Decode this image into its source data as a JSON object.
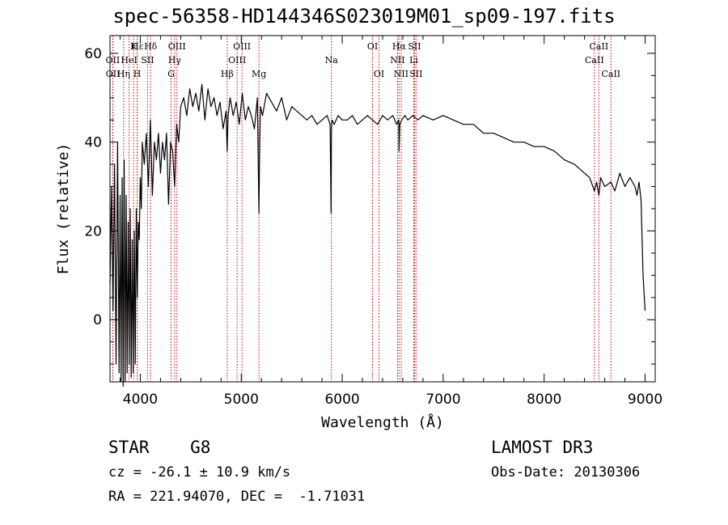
{
  "chart_data": {
    "type": "line",
    "title": "spec-56358-HD144346S023019M01_sp09-197.fits",
    "xlabel": "Wavelength (Å)",
    "ylabel": "Flux (relative)",
    "xlim": [
      3700,
      9100
    ],
    "ylim": [
      -14,
      64
    ],
    "xticks": [
      4000,
      5000,
      6000,
      7000,
      8000,
      9000
    ],
    "yticks": [
      0,
      20,
      40,
      60
    ],
    "line_color": "#000000",
    "marker_color": "#cc0000",
    "series": [
      {
        "name": "flux",
        "x": [
          3700,
          3715,
          3730,
          3745,
          3760,
          3775,
          3790,
          3800,
          3810,
          3820,
          3830,
          3840,
          3850,
          3860,
          3870,
          3880,
          3890,
          3900,
          3910,
          3920,
          3930,
          3940,
          3950,
          3960,
          3970,
          3980,
          3990,
          4000,
          4010,
          4020,
          4040,
          4060,
          4080,
          4100,
          4120,
          4140,
          4160,
          4180,
          4200,
          4220,
          4240,
          4260,
          4280,
          4300,
          4320,
          4340,
          4360,
          4380,
          4400,
          4430,
          4460,
          4490,
          4520,
          4550,
          4580,
          4610,
          4640,
          4670,
          4700,
          4730,
          4760,
          4790,
          4820,
          4850,
          4860,
          4870,
          4890,
          4920,
          4950,
          4980,
          5010,
          5040,
          5070,
          5100,
          5130,
          5160,
          5175,
          5183,
          5190,
          5210,
          5250,
          5300,
          5350,
          5400,
          5450,
          5500,
          5550,
          5600,
          5650,
          5700,
          5750,
          5800,
          5850,
          5880,
          5890,
          5893,
          5896,
          5900,
          5920,
          5960,
          6000,
          6050,
          6100,
          6150,
          6200,
          6250,
          6300,
          6350,
          6400,
          6450,
          6500,
          6540,
          6560,
          6563,
          6570,
          6590,
          6620,
          6650,
          6700,
          6750,
          6800,
          6900,
          7000,
          7100,
          7200,
          7300,
          7400,
          7500,
          7600,
          7700,
          7800,
          7900,
          8000,
          8100,
          8200,
          8300,
          8400,
          8450,
          8498,
          8520,
          8542,
          8560,
          8600,
          8662,
          8700,
          8750,
          8800,
          8850,
          8900,
          8920,
          8940,
          8960,
          8980,
          9000
        ],
        "y": [
          8,
          30,
          2,
          35,
          -10,
          40,
          -12,
          28,
          -14,
          32,
          -15,
          36,
          -14,
          28,
          -12,
          22,
          -10,
          25,
          -13,
          18,
          -12,
          20,
          -10,
          25,
          5,
          22,
          18,
          32,
          25,
          40,
          35,
          42,
          30,
          45,
          28,
          40,
          36,
          42,
          33,
          40,
          36,
          42,
          26,
          40,
          38,
          30,
          44,
          40,
          48,
          50,
          46,
          52,
          48,
          51,
          47,
          53,
          45,
          52,
          48,
          50,
          46,
          49,
          43,
          47,
          38,
          46,
          50,
          46,
          49,
          44,
          51,
          45,
          48,
          46,
          43,
          50,
          24,
          40,
          48,
          46,
          51,
          49,
          47,
          50,
          45,
          48,
          47,
          46,
          45,
          46,
          44,
          45,
          46,
          44,
          24,
          42,
          44,
          45,
          44,
          46,
          45,
          45,
          46,
          44,
          45,
          46,
          45,
          44,
          46,
          45,
          46,
          44,
          45,
          38,
          44,
          45,
          46,
          45,
          46,
          45,
          46,
          45,
          46,
          45,
          44,
          44,
          42,
          42,
          41,
          40,
          40,
          39,
          39,
          38,
          36,
          35,
          33,
          32,
          29,
          31,
          28,
          32,
          30,
          31,
          29,
          33,
          30,
          32,
          30,
          28,
          31,
          27,
          10,
          2
        ]
      }
    ],
    "lines": [
      {
        "name": "Hε",
        "x": 3970,
        "row": 1
      },
      {
        "name": "K",
        "x": 3934,
        "row": 1
      },
      {
        "name": "Hδ",
        "x": 4102,
        "row": 1
      },
      {
        "name": "OII",
        "x": 3727,
        "row": 2
      },
      {
        "name": "HeI",
        "x": 3889,
        "row": 2
      },
      {
        "name": "SII",
        "x": 4072,
        "row": 2
      },
      {
        "name": "OII",
        "x": 3729,
        "row": 3
      },
      {
        "name": "Hη",
        "x": 3835,
        "row": 3
      },
      {
        "name": "H",
        "x": 3969,
        "row": 3
      },
      {
        "name": "OIII",
        "x": 4363,
        "row": 1
      },
      {
        "name": "Hγ",
        "x": 4340,
        "row": 2
      },
      {
        "name": "G",
        "x": 4305,
        "row": 3
      },
      {
        "name": "OIII",
        "x": 5007,
        "row": 1
      },
      {
        "name": "OIII",
        "x": 4959,
        "row": 2
      },
      {
        "name": "Hβ",
        "x": 4861,
        "row": 3
      },
      {
        "name": "Mg",
        "x": 5175,
        "row": 3
      },
      {
        "name": "Na",
        "x": 5893,
        "row": 2
      },
      {
        "name": "OI",
        "x": 6300,
        "row": 1
      },
      {
        "name": "OI",
        "x": 6364,
        "row": 3
      },
      {
        "name": "Hα",
        "x": 6563,
        "row": 1
      },
      {
        "name": "SII",
        "x": 6716,
        "row": 1
      },
      {
        "name": "NII",
        "x": 6548,
        "row": 2
      },
      {
        "name": "Li",
        "x": 6708,
        "row": 2
      },
      {
        "name": "NII",
        "x": 6584,
        "row": 3
      },
      {
        "name": "SII",
        "x": 6731,
        "row": 3
      },
      {
        "name": "CaII",
        "x": 8542,
        "row": 1
      },
      {
        "name": "CaII",
        "x": 8498,
        "row": 2
      },
      {
        "name": "CaII",
        "x": 8662,
        "row": 3
      }
    ]
  },
  "info": {
    "class": "STAR    G8",
    "survey": "LAMOST DR3",
    "cz": "cz = -26.1 ± 10.9 km/s",
    "obs_date": "Obs-Date: 20130306",
    "coords": "RA = 221.94070, DEC =  -1.71031"
  }
}
